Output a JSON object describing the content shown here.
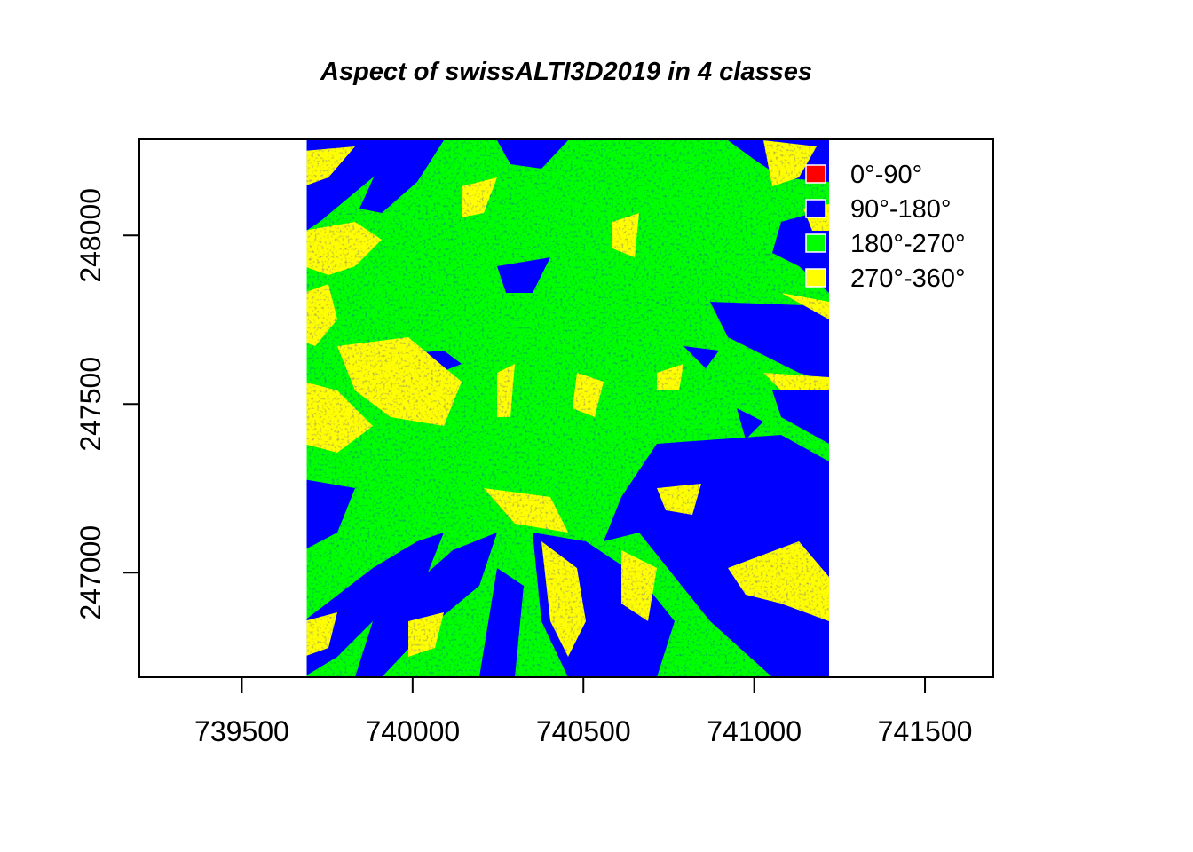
{
  "title": "Aspect of swissALTI3D2019 in 4 classes",
  "colors": {
    "class_0_90": "#ff0000",
    "class_90_180": "#0000ff",
    "class_180_270": "#00ff00",
    "class_270_360": "#ffff00",
    "frame": "#000000",
    "background": "#ffffff"
  },
  "legend": [
    {
      "label": "0°-90°",
      "color": "#ff0000"
    },
    {
      "label": "90°-180°",
      "color": "#0000ff"
    },
    {
      "label": "180°-270°",
      "color": "#00ff00"
    },
    {
      "label": "270°-360°",
      "color": "#ffff00"
    }
  ],
  "x_axis": {
    "ticks": [
      739500,
      740000,
      740500,
      741000,
      741500
    ],
    "tick_labels": [
      "739500",
      "740000",
      "740500",
      "741000",
      "741500"
    ],
    "range": [
      739200,
      741700
    ]
  },
  "y_axis": {
    "ticks": [
      247000,
      247500,
      248000
    ],
    "tick_labels": [
      "247000",
      "247500",
      "248000"
    ],
    "range": [
      246690,
      248285
    ]
  },
  "raster_extent": {
    "xmin": 739690,
    "xmax": 741230,
    "ymin": 246690,
    "ymax": 248285
  }
}
